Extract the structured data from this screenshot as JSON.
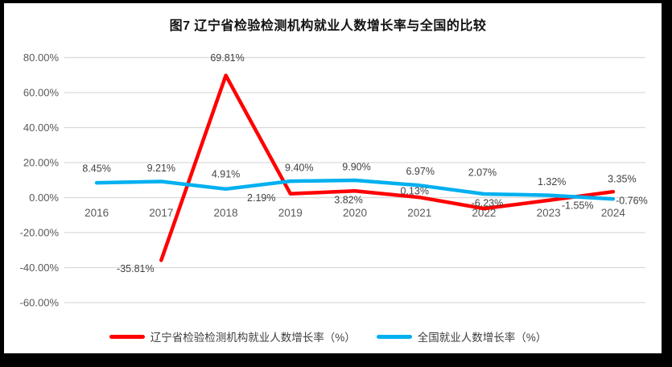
{
  "title": "图7  辽宁省检验检测机构就业人数增长率与全国的比较",
  "legend": [
    {
      "label": "辽宁省检验检测机构就业人数增长率（%）",
      "color": "#FF0000"
    },
    {
      "label": "全国就业人数增长率（%）",
      "color": "#00B0F0"
    }
  ],
  "colors": {
    "liaoning_series": "#FF0000",
    "national_series": "#00B0F0",
    "gridline": "#D9D9D9",
    "axis_text": "#595959",
    "data_label_text": "#404040",
    "frame": "#000000"
  },
  "chart_data": {
    "type": "line",
    "title": "图7  辽宁省检验检测机构就业人数增长率与全国的比较",
    "categories": [
      "2016",
      "2017",
      "2018",
      "2019",
      "2020",
      "2021",
      "2022",
      "2023",
      "2024"
    ],
    "series": [
      {
        "name": "辽宁省检验检测机构就业人数增长率（%）",
        "color": "#FF0000",
        "values": [
          null,
          -35.81,
          69.81,
          2.19,
          3.82,
          0.13,
          -6.23,
          -1.55,
          3.35
        ],
        "labels": [
          null,
          "-35.81%",
          "69.81%",
          "2.19%",
          "3.82%",
          "0.13%",
          "-6.23%",
          "-1.55%",
          "3.35%"
        ]
      },
      {
        "name": "全国就业人数增长率（%）",
        "color": "#00B0F0",
        "values": [
          8.45,
          9.21,
          4.91,
          9.4,
          9.9,
          6.97,
          2.07,
          1.32,
          -0.76
        ],
        "labels": [
          "8.45%",
          "9.21%",
          "4.91%",
          "9.40%",
          "9.90%",
          "6.97%",
          "2.07%",
          "1.32%",
          "-0.76%"
        ]
      }
    ],
    "y_axis": {
      "min": -60,
      "max": 80,
      "step": 20,
      "tick_labels": [
        "80.00%",
        "60.00%",
        "40.00%",
        "20.00%",
        "0.00%",
        "-20.00%",
        "-40.00%",
        "-60.00%"
      ]
    },
    "grid": true,
    "legend_position": "bottom"
  }
}
